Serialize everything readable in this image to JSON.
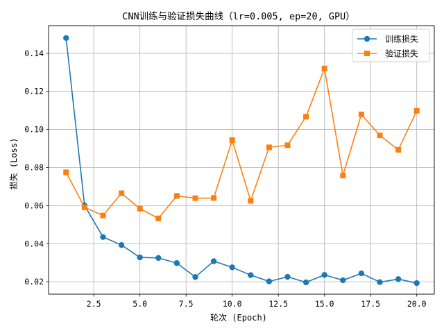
{
  "chart_data": {
    "type": "line",
    "title": "CNN训练与验证损失曲线（lr=0.005, ep=20, GPU）",
    "xlabel": "轮次 (Epoch)",
    "ylabel": "损失 (Loss)",
    "xlim": [
      0.05,
      20.95
    ],
    "ylim": [
      0.0135,
      0.1545
    ],
    "x_ticks": [
      2.5,
      5.0,
      7.5,
      10.0,
      12.5,
      15.0,
      17.5,
      20.0
    ],
    "x_tick_labels": [
      "2.5",
      "5.0",
      "7.5",
      "10.0",
      "12.5",
      "15.0",
      "17.5",
      "20.0"
    ],
    "y_ticks": [
      0.02,
      0.04,
      0.06,
      0.08,
      0.1,
      0.12,
      0.14
    ],
    "y_tick_labels": [
      "0.02",
      "0.04",
      "0.06",
      "0.08",
      "0.10",
      "0.12",
      "0.14"
    ],
    "grid": true,
    "legend_position": "top-right",
    "x": [
      1,
      2,
      3,
      4,
      5,
      6,
      7,
      8,
      9,
      10,
      11,
      12,
      13,
      14,
      15,
      16,
      17,
      18,
      19,
      20
    ],
    "series": [
      {
        "name": "训练损失",
        "color": "#1f77b4",
        "marker": "circle",
        "values": [
          0.148,
          0.0601,
          0.0435,
          0.0393,
          0.0328,
          0.0325,
          0.0298,
          0.0225,
          0.0308,
          0.0276,
          0.0235,
          0.0202,
          0.0226,
          0.0197,
          0.0236,
          0.0208,
          0.0244,
          0.0198,
          0.0214,
          0.0193
        ]
      },
      {
        "name": "验证损失",
        "color": "#ff7f0e",
        "marker": "square",
        "values": [
          0.0775,
          0.0591,
          0.0548,
          0.0665,
          0.0584,
          0.0533,
          0.0651,
          0.0639,
          0.064,
          0.0944,
          0.0625,
          0.0906,
          0.0917,
          0.1067,
          0.132,
          0.0758,
          0.1079,
          0.0969,
          0.0893,
          0.1098
        ]
      }
    ]
  }
}
